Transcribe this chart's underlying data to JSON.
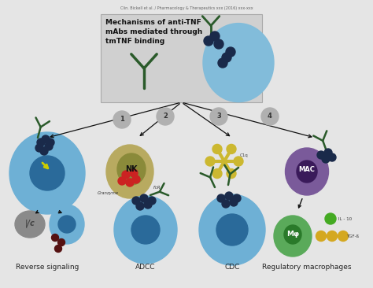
{
  "bg_color": "#e5e5e5",
  "fig_bg": "#e5e5e5",
  "title_text": "Mechanisms of anti-TNF\nmAbs mediated through\ntmTNF binding",
  "title_fontsize": 6.5,
  "header_bg": "#d2d2d2",
  "cell_blue_light": "#6eb0d5",
  "cell_blue_dark": "#2a6a9a",
  "cell_navy": "#1a2a4a",
  "cell_olive_outer": "#b8aa60",
  "cell_olive_inner": "#8a8a3a",
  "cell_purple": "#7a5a9a",
  "cell_purple_dark": "#3a1a5a",
  "cell_green_outer": "#5aaa5a",
  "cell_green_inner": "#2a7a2a",
  "cell_gray": "#8a8a8a",
  "red_granule": "#cc2222",
  "yellow_c1q": "#ccb830",
  "dark_green_ab": "#2a5a2a",
  "arrow_color": "#111111",
  "number_circle_bg": "#b0b0b0",
  "number_circle_text": "#333333",
  "label_fontsize": 6.5,
  "labels": [
    "Reverse signaling",
    "ADCC",
    "CDC",
    "Regulatory macrophages"
  ],
  "numbers": [
    "1",
    "2",
    "3",
    "4"
  ],
  "citation": "Clin. Bickell et al. / Pharmacology & Therapeutics xxx (2016) xxx-xxx"
}
